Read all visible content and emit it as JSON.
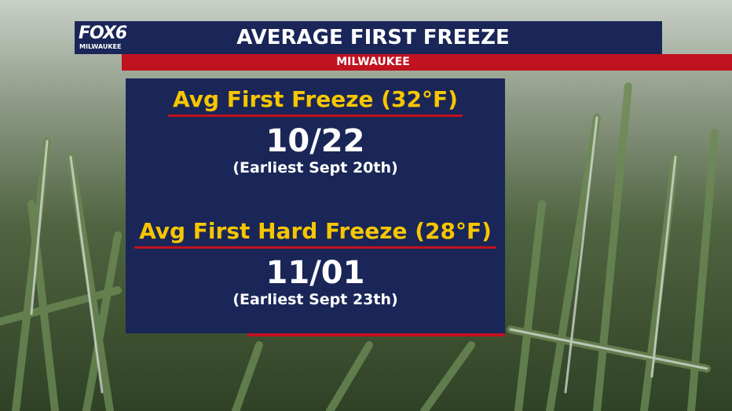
{
  "logo": {
    "brand": "FOX6",
    "station": "MILWAUKEE"
  },
  "header": {
    "title": "AVERAGE FIRST FREEZE",
    "subtitle": "MILWAUKEE"
  },
  "sections": [
    {
      "heading": "Avg First Freeze (32°F)",
      "date": "10/22",
      "note": "(Earliest Sept 20th)"
    },
    {
      "heading": "Avg First Hard Freeze (28°F)",
      "date": "11/01",
      "note": "(Earliest Sept 23th)"
    }
  ]
}
